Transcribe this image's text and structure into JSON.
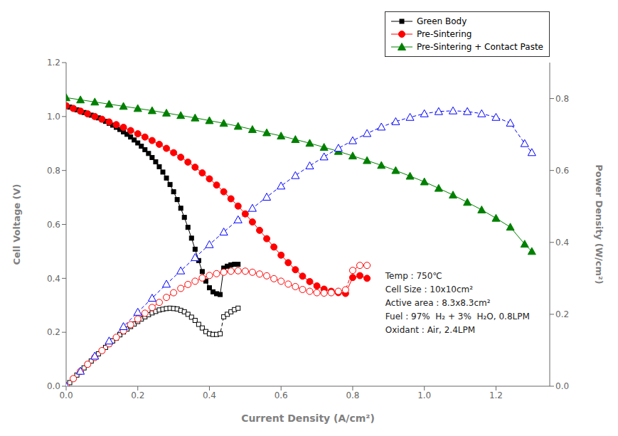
{
  "chart_data": {
    "type": "line",
    "xlabel": "Current Density (A/cm²)",
    "ylabel": "Cell Voltage (V)",
    "y2label": "Power Density (W/cm²)",
    "annotation": "Temp : 750℃\nCell Size : 10x10cm²\nActive area : 8.3x8.3cm²\nFuel : 97%  H₂ + 3%  H₂O, 0.8LPM\nOxidant : Air, 2.4LPM",
    "xlim": [
      0,
      1.35
    ],
    "xticks": [
      {
        "value": 0,
        "label": "0.0"
      },
      0.2,
      0.4,
      0.6,
      0.8,
      {
        "value": 1,
        "label": "1.0"
      },
      1.2
    ],
    "ylim": [
      0,
      1.2
    ],
    "yticks": [
      {
        "value": 0,
        "label": "0.0"
      },
      0.2,
      0.4,
      0.6,
      0.8,
      {
        "value": 1,
        "label": "1.0"
      },
      1.2
    ],
    "y2lim": [
      0,
      0.9
    ],
    "y2ticks": [
      {
        "value": 0,
        "label": "0.0"
      },
      0.2,
      0.4,
      0.6,
      0.8
    ],
    "grid": false,
    "legend": "upper right",
    "series": [
      {
        "name": "Green Body",
        "axis": "y",
        "color": "black",
        "marker": "square",
        "line_style": "solid",
        "x": [
          0.0,
          0.01,
          0.02,
          0.03,
          0.04,
          0.05,
          0.06,
          0.07,
          0.08,
          0.09,
          0.1,
          0.11,
          0.12,
          0.13,
          0.14,
          0.15,
          0.16,
          0.17,
          0.18,
          0.19,
          0.2,
          0.21,
          0.22,
          0.23,
          0.24,
          0.25,
          0.26,
          0.27,
          0.28,
          0.29,
          0.3,
          0.31,
          0.32,
          0.33,
          0.34,
          0.35,
          0.36,
          0.37,
          0.38,
          0.39,
          0.4,
          0.41,
          0.42,
          0.43,
          0.44,
          0.45,
          0.46,
          0.47,
          0.48
        ],
        "values": [
          1.04,
          1.035,
          1.03,
          1.025,
          1.02,
          1.015,
          1.01,
          1.005,
          1.0,
          0.995,
          0.988,
          0.982,
          0.975,
          0.968,
          0.96,
          0.952,
          0.943,
          0.934,
          0.924,
          0.913,
          0.902,
          0.89,
          0.877,
          0.863,
          0.848,
          0.832,
          0.814,
          0.794,
          0.772,
          0.748,
          0.721,
          0.692,
          0.66,
          0.626,
          0.589,
          0.549,
          0.508,
          0.466,
          0.425,
          0.39,
          0.365,
          0.35,
          0.343,
          0.34,
          0.438,
          0.445,
          0.45,
          0.452,
          0.452
        ]
      },
      {
        "axis": "y2",
        "color": "black",
        "marker": "open_square",
        "line_style": "dashed",
        "x": [
          0.0,
          0.01,
          0.02,
          0.03,
          0.04,
          0.05,
          0.06,
          0.07,
          0.08,
          0.09,
          0.1,
          0.11,
          0.12,
          0.13,
          0.14,
          0.15,
          0.16,
          0.17,
          0.18,
          0.19,
          0.2,
          0.21,
          0.22,
          0.23,
          0.24,
          0.25,
          0.26,
          0.27,
          0.28,
          0.29,
          0.3,
          0.31,
          0.32,
          0.33,
          0.34,
          0.35,
          0.36,
          0.37,
          0.38,
          0.39,
          0.4,
          0.41,
          0.42,
          0.43,
          0.44,
          0.45,
          0.46,
          0.47,
          0.48
        ],
        "values": [
          0.0,
          0.01,
          0.021,
          0.031,
          0.041,
          0.051,
          0.061,
          0.07,
          0.08,
          0.09,
          0.099,
          0.108,
          0.117,
          0.126,
          0.134,
          0.143,
          0.151,
          0.159,
          0.166,
          0.173,
          0.18,
          0.187,
          0.193,
          0.199,
          0.204,
          0.208,
          0.212,
          0.214,
          0.216,
          0.217,
          0.216,
          0.215,
          0.211,
          0.207,
          0.2,
          0.192,
          0.183,
          0.172,
          0.162,
          0.152,
          0.146,
          0.144,
          0.144,
          0.146,
          0.193,
          0.2,
          0.207,
          0.213,
          0.217
        ]
      },
      {
        "name": "Pre-Sintering",
        "axis": "y",
        "color": "red",
        "marker": "circle",
        "line_style": "solid",
        "x": [
          0.0,
          0.02,
          0.04,
          0.06,
          0.08,
          0.1,
          0.12,
          0.14,
          0.16,
          0.18,
          0.2,
          0.22,
          0.24,
          0.26,
          0.28,
          0.3,
          0.32,
          0.34,
          0.36,
          0.38,
          0.4,
          0.42,
          0.44,
          0.46,
          0.48,
          0.5,
          0.52,
          0.54,
          0.56,
          0.58,
          0.6,
          0.62,
          0.64,
          0.66,
          0.68,
          0.7,
          0.72,
          0.74,
          0.76,
          0.78,
          0.8,
          0.82,
          0.84
        ],
        "values": [
          1.04,
          1.03,
          1.02,
          1.01,
          1.0,
          0.99,
          0.98,
          0.97,
          0.96,
          0.948,
          0.936,
          0.924,
          0.911,
          0.897,
          0.882,
          0.866,
          0.849,
          0.831,
          0.812,
          0.791,
          0.769,
          0.746,
          0.721,
          0.695,
          0.668,
          0.639,
          0.609,
          0.578,
          0.547,
          0.516,
          0.486,
          0.458,
          0.432,
          0.408,
          0.388,
          0.372,
          0.36,
          0.352,
          0.347,
          0.344,
          0.403,
          0.41,
          0.4
        ]
      },
      {
        "axis": "y2",
        "color": "red",
        "marker": "open_circle",
        "line_style": "dashed",
        "x": [
          0.0,
          0.02,
          0.04,
          0.06,
          0.08,
          0.1,
          0.12,
          0.14,
          0.16,
          0.18,
          0.2,
          0.22,
          0.24,
          0.26,
          0.28,
          0.3,
          0.32,
          0.34,
          0.36,
          0.38,
          0.4,
          0.42,
          0.44,
          0.46,
          0.48,
          0.5,
          0.52,
          0.54,
          0.56,
          0.58,
          0.6,
          0.62,
          0.64,
          0.66,
          0.68,
          0.7,
          0.72,
          0.74,
          0.76,
          0.78,
          0.8,
          0.82,
          0.84
        ],
        "values": [
          0.0,
          0.021,
          0.041,
          0.061,
          0.08,
          0.099,
          0.118,
          0.136,
          0.154,
          0.171,
          0.187,
          0.203,
          0.219,
          0.233,
          0.247,
          0.26,
          0.272,
          0.283,
          0.292,
          0.301,
          0.308,
          0.313,
          0.317,
          0.32,
          0.321,
          0.32,
          0.317,
          0.312,
          0.307,
          0.299,
          0.292,
          0.284,
          0.277,
          0.269,
          0.264,
          0.26,
          0.259,
          0.26,
          0.264,
          0.268,
          0.322,
          0.336,
          0.336
        ]
      },
      {
        "name": "Pre-Sintering + Contact Paste",
        "axis": "y",
        "color": "green",
        "marker": "triangle",
        "line_style": "solid",
        "x": [
          0.0,
          0.04,
          0.08,
          0.12,
          0.16,
          0.2,
          0.24,
          0.28,
          0.32,
          0.36,
          0.4,
          0.44,
          0.48,
          0.52,
          0.56,
          0.6,
          0.64,
          0.68,
          0.72,
          0.76,
          0.8,
          0.84,
          0.88,
          0.92,
          0.96,
          1.0,
          1.04,
          1.08,
          1.12,
          1.16,
          1.2,
          1.24,
          1.28,
          1.3
        ],
        "values": [
          1.07,
          1.062,
          1.054,
          1.046,
          1.038,
          1.03,
          1.022,
          1.013,
          1.004,
          0.995,
          0.985,
          0.975,
          0.964,
          0.952,
          0.94,
          0.928,
          0.915,
          0.901,
          0.886,
          0.871,
          0.854,
          0.837,
          0.819,
          0.8,
          0.779,
          0.758,
          0.734,
          0.709,
          0.682,
          0.654,
          0.623,
          0.59,
          0.527,
          0.5
        ]
      },
      {
        "axis": "y2",
        "color": "blue",
        "marker": "open_triangle",
        "line_style": "dashed",
        "x": [
          0.0,
          0.04,
          0.08,
          0.12,
          0.16,
          0.2,
          0.24,
          0.28,
          0.32,
          0.36,
          0.4,
          0.44,
          0.48,
          0.52,
          0.56,
          0.6,
          0.64,
          0.68,
          0.72,
          0.76,
          0.8,
          0.84,
          0.88,
          0.92,
          0.96,
          1.0,
          1.04,
          1.08,
          1.12,
          1.16,
          1.2,
          1.24,
          1.28,
          1.3
        ],
        "values": [
          0.0,
          0.042,
          0.084,
          0.126,
          0.166,
          0.206,
          0.245,
          0.284,
          0.321,
          0.358,
          0.394,
          0.429,
          0.463,
          0.495,
          0.526,
          0.557,
          0.586,
          0.613,
          0.638,
          0.662,
          0.683,
          0.703,
          0.721,
          0.736,
          0.748,
          0.758,
          0.764,
          0.766,
          0.764,
          0.758,
          0.748,
          0.732,
          0.675,
          0.65
        ]
      }
    ]
  }
}
